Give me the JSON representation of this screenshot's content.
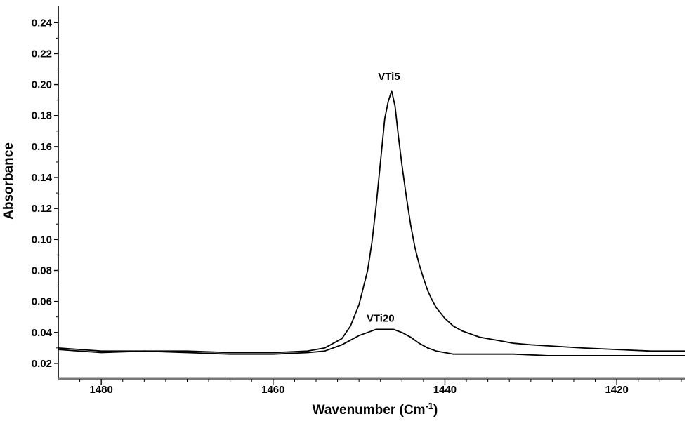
{
  "chart_data": {
    "type": "line",
    "title": "",
    "xlabel": "Wavenumber (Cm",
    "xlabel_superscript": "-1",
    "xlabel_close": ")",
    "ylabel": "Absorbance",
    "xlim": [
      1485,
      1412
    ],
    "ylim": [
      0.01,
      0.251
    ],
    "x_reversed": true,
    "grid": false,
    "line_color": "#000000",
    "xticks": [
      1480,
      1460,
      1440,
      1420
    ],
    "xtick_labels": [
      "1480",
      "1460",
      "1440",
      "1420"
    ],
    "xticks_minor": [
      1482.5,
      1477.5,
      1475,
      1472.5,
      1470,
      1467.5,
      1465,
      1462.5,
      1457.5,
      1455,
      1452.5,
      1450,
      1447.5,
      1445,
      1442.5,
      1437.5,
      1435,
      1432.5,
      1430,
      1427.5,
      1425,
      1422.5,
      1417.5,
      1415,
      1412.5
    ],
    "yticks": [
      0.02,
      0.04,
      0.06,
      0.08,
      0.1,
      0.12,
      0.14,
      0.16,
      0.18,
      0.2,
      0.22,
      0.24
    ],
    "ytick_labels": [
      "0.02",
      "0.04",
      "0.06",
      "0.08",
      "0.10",
      "0.12",
      "0.14",
      "0.16",
      "0.18",
      "0.20",
      "0.22",
      "0.24"
    ],
    "series": [
      {
        "name": "VTi5",
        "label_at": [
          1446.5,
          0.203
        ],
        "x": [
          1485,
          1480,
          1475,
          1470,
          1465,
          1460,
          1456,
          1454,
          1452,
          1451,
          1450,
          1449,
          1448.5,
          1448,
          1447.5,
          1447,
          1446.6,
          1446.2,
          1445.8,
          1445.4,
          1445,
          1444.5,
          1444,
          1443.5,
          1443,
          1442.5,
          1442,
          1441.5,
          1441,
          1440,
          1439,
          1438,
          1437,
          1436,
          1435,
          1434,
          1432,
          1430,
          1427,
          1424,
          1420,
          1416,
          1412
        ],
        "y": [
          0.03,
          0.028,
          0.028,
          0.028,
          0.027,
          0.027,
          0.028,
          0.03,
          0.036,
          0.044,
          0.058,
          0.08,
          0.098,
          0.122,
          0.15,
          0.178,
          0.189,
          0.196,
          0.186,
          0.166,
          0.148,
          0.128,
          0.11,
          0.095,
          0.084,
          0.075,
          0.067,
          0.061,
          0.056,
          0.049,
          0.044,
          0.041,
          0.039,
          0.037,
          0.036,
          0.035,
          0.033,
          0.032,
          0.031,
          0.03,
          0.029,
          0.028,
          0.028
        ]
      },
      {
        "name": "VTi20",
        "label_at": [
          1447.5,
          0.047
        ],
        "x": [
          1485,
          1480,
          1475,
          1470,
          1465,
          1460,
          1456,
          1454,
          1452,
          1451,
          1450,
          1449,
          1448,
          1447,
          1446,
          1445.5,
          1445,
          1444,
          1443,
          1442,
          1441,
          1440,
          1439,
          1438,
          1436,
          1432,
          1428,
          1424,
          1420,
          1416,
          1412
        ],
        "y": [
          0.029,
          0.027,
          0.028,
          0.027,
          0.026,
          0.026,
          0.027,
          0.028,
          0.032,
          0.035,
          0.038,
          0.04,
          0.042,
          0.042,
          0.042,
          0.041,
          0.04,
          0.037,
          0.033,
          0.03,
          0.028,
          0.027,
          0.026,
          0.026,
          0.026,
          0.026,
          0.025,
          0.025,
          0.025,
          0.025,
          0.025
        ]
      }
    ]
  }
}
